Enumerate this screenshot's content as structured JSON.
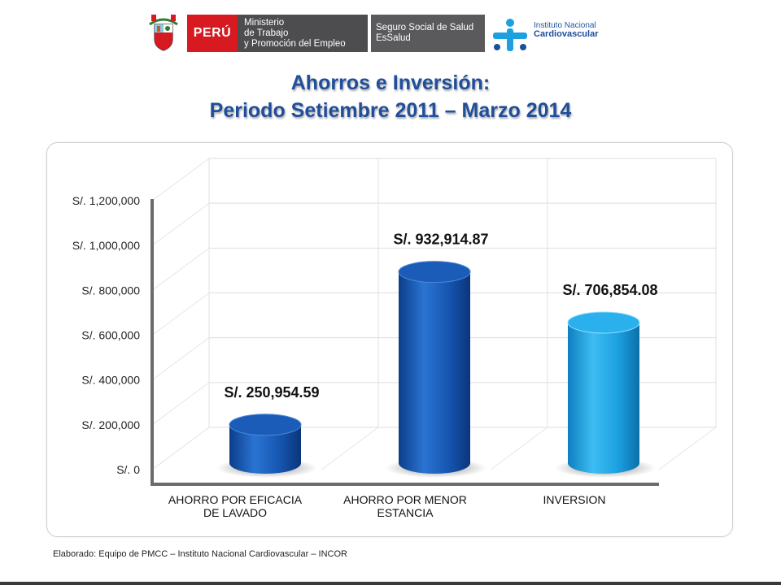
{
  "header": {
    "peru_label": "PERÚ",
    "ministry_lines": [
      "Ministerio",
      "de Trabajo",
      "y Promoción del Empleo"
    ],
    "essalud_lines": [
      "Seguro Social de Salud",
      "EsSalud"
    ],
    "incor_lines": [
      "Instituto Nacional",
      "Cardiovascular"
    ],
    "crest_icon": "peru-coat-of-arms-icon",
    "incor_icon": "incor-logo-icon"
  },
  "title_line1": "Ahorros e Inversión:",
  "title_line2": "Periodo Setiembre 2011 – Marzo 2014",
  "footer": "Elaborado: Equipo de PMCC – Instituto Nacional Cardiovascular – INCOR",
  "colors": {
    "title": "#1f4e9a",
    "bar_dark": "#1656b0",
    "bar_light": "#1ca0e0"
  },
  "chart_data": {
    "type": "bar",
    "style": "3d-cylinder",
    "categories": [
      [
        "AHORRO POR EFICACIA",
        "DE LAVADO"
      ],
      [
        "AHORRO POR MENOR",
        "ESTANCIA"
      ],
      [
        "INVERSION"
      ]
    ],
    "values": [
      250954.59,
      932914.87,
      706854.08
    ],
    "data_labels": [
      "S/. 250,954.59",
      "S/. 932,914.87",
      "S/. 706,854.08"
    ],
    "bar_colors": [
      "#1656b0",
      "#1656b0",
      "#1ca0e0"
    ],
    "y_ticks": [
      0,
      200000,
      400000,
      600000,
      800000,
      1000000,
      1200000
    ],
    "y_tick_labels": [
      "S/. 0",
      "S/. 200,000",
      "S/. 400,000",
      "S/. 600,000",
      "S/. 800,000",
      "S/. 1,000,000",
      "S/. 1,200,000"
    ],
    "ylim": [
      0,
      1200000
    ],
    "grid": true,
    "legend": "none"
  }
}
